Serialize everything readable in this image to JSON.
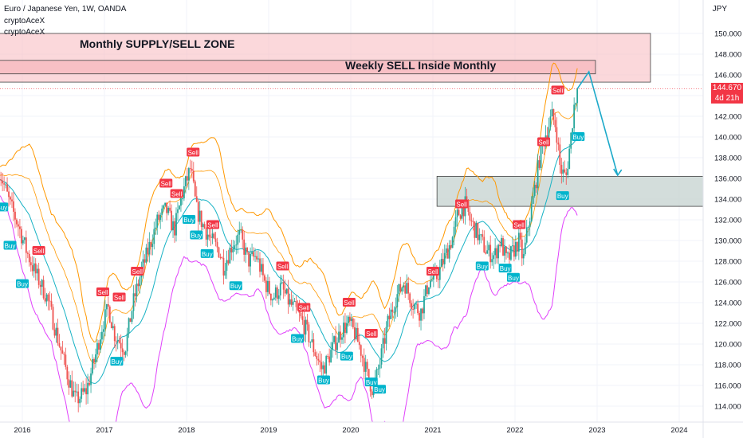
{
  "header": {
    "title": "Euro / Japanese Yen, 1W, OANDA",
    "indicators": [
      "cryptoAceX",
      "cryptoAceX"
    ],
    "currency": "JPY"
  },
  "price_label": {
    "value": "144.670",
    "countdown": "4d 21h"
  },
  "colors": {
    "up": "#26a69a",
    "down": "#ef5350",
    "upper_band": "#ff9800",
    "lower_band": "#e040fb",
    "mid_band": "#17b2c4",
    "sell_badge": "#f23645",
    "buy_badge": "#00b4cc",
    "supply_zone": "#f7b8bd",
    "demand_zone": "#c8d4d2",
    "arrow": "#1ca9c9"
  },
  "chart_data": {
    "type": "candlestick",
    "x_ticks": [
      "2016",
      "2017",
      "2018",
      "2019",
      "2020",
      "2021",
      "2022",
      "2023",
      "2024"
    ],
    "y_ticks": [
      "114.000",
      "116.000",
      "118.000",
      "120.000",
      "122.000",
      "124.000",
      "126.000",
      "128.000",
      "130.000",
      "132.000",
      "134.000",
      "136.000",
      "138.000",
      "140.000",
      "142.000",
      "144.000",
      "146.000",
      "148.000",
      "150.000"
    ],
    "ylim": [
      113,
      151
    ],
    "xlim": [
      2015.7,
      2024.6
    ],
    "close_path": [
      [
        2015.72,
        136.8
      ],
      [
        2015.85,
        133.5
      ],
      [
        2015.95,
        131.5
      ],
      [
        2016.05,
        129.0
      ],
      [
        2016.15,
        127.0
      ],
      [
        2016.3,
        124.5
      ],
      [
        2016.45,
        120.0
      ],
      [
        2016.55,
        117.0
      ],
      [
        2016.65,
        114.5
      ],
      [
        2016.78,
        115.5
      ],
      [
        2016.88,
        118.5
      ],
      [
        2016.98,
        122.0
      ],
      [
        2017.05,
        123.5
      ],
      [
        2017.12,
        121.0
      ],
      [
        2017.25,
        119.5
      ],
      [
        2017.35,
        124.0
      ],
      [
        2017.45,
        127.0
      ],
      [
        2017.55,
        129.5
      ],
      [
        2017.65,
        132.0
      ],
      [
        2017.75,
        133.0
      ],
      [
        2017.85,
        131.0
      ],
      [
        2017.95,
        134.5
      ],
      [
        2018.05,
        137.0
      ],
      [
        2018.12,
        133.0
      ],
      [
        2018.2,
        131.5
      ],
      [
        2018.3,
        130.0
      ],
      [
        2018.4,
        129.0
      ],
      [
        2018.45,
        127.5
      ],
      [
        2018.55,
        129.5
      ],
      [
        2018.65,
        130.5
      ],
      [
        2018.75,
        128.0
      ],
      [
        2018.85,
        128.5
      ],
      [
        2018.95,
        126.0
      ],
      [
        2019.05,
        124.5
      ],
      [
        2019.15,
        125.5
      ],
      [
        2019.25,
        124.0
      ],
      [
        2019.35,
        123.0
      ],
      [
        2019.45,
        121.5
      ],
      [
        2019.55,
        119.5
      ],
      [
        2019.65,
        117.5
      ],
      [
        2019.72,
        118.5
      ],
      [
        2019.8,
        120.0
      ],
      [
        2019.9,
        121.5
      ],
      [
        2019.98,
        122.0
      ],
      [
        2020.05,
        121.0
      ],
      [
        2020.12,
        119.5
      ],
      [
        2020.2,
        117.0
      ],
      [
        2020.27,
        115.5
      ],
      [
        2020.35,
        118.0
      ],
      [
        2020.45,
        122.0
      ],
      [
        2020.55,
        124.5
      ],
      [
        2020.65,
        126.0
      ],
      [
        2020.75,
        124.0
      ],
      [
        2020.85,
        123.0
      ],
      [
        2020.95,
        126.0
      ],
      [
        2021.05,
        126.5
      ],
      [
        2021.15,
        128.5
      ],
      [
        2021.25,
        130.5
      ],
      [
        2021.3,
        132.5
      ],
      [
        2021.4,
        133.5
      ],
      [
        2021.45,
        132.0
      ],
      [
        2021.55,
        130.5
      ],
      [
        2021.65,
        129.0
      ],
      [
        2021.75,
        128.5
      ],
      [
        2021.82,
        130.0
      ],
      [
        2021.9,
        128.0
      ],
      [
        2021.98,
        129.0
      ],
      [
        2022.05,
        130.0
      ],
      [
        2022.1,
        128.0
      ],
      [
        2022.15,
        131.0
      ],
      [
        2022.22,
        134.0
      ],
      [
        2022.3,
        138.0
      ],
      [
        2022.38,
        140.5
      ],
      [
        2022.45,
        142.0
      ],
      [
        2022.5,
        141.0
      ],
      [
        2022.55,
        137.0
      ],
      [
        2022.62,
        136.0
      ],
      [
        2022.68,
        140.0
      ],
      [
        2022.72,
        143.0
      ],
      [
        2022.76,
        144.67
      ]
    ],
    "sell_signals": [
      [
        2016.2,
        129.0
      ],
      [
        2016.98,
        125.0
      ],
      [
        2017.18,
        124.5
      ],
      [
        2017.4,
        127.0
      ],
      [
        2017.75,
        135.5
      ],
      [
        2017.88,
        134.5
      ],
      [
        2018.08,
        138.5
      ],
      [
        2018.32,
        131.5
      ],
      [
        2019.17,
        127.5
      ],
      [
        2019.43,
        123.5
      ],
      [
        2019.98,
        124.0
      ],
      [
        2020.25,
        121.0
      ],
      [
        2021.0,
        127.0
      ],
      [
        2021.35,
        133.5
      ],
      [
        2022.05,
        131.5
      ],
      [
        2022.35,
        139.5
      ],
      [
        2022.52,
        144.5
      ]
    ],
    "buy_signals": [
      [
        2015.75,
        133.2
      ],
      [
        2015.85,
        129.5
      ],
      [
        2016.0,
        125.8
      ],
      [
        2017.15,
        118.3
      ],
      [
        2018.03,
        132.0
      ],
      [
        2018.12,
        130.5
      ],
      [
        2018.25,
        128.7
      ],
      [
        2018.6,
        125.6
      ],
      [
        2019.35,
        120.5
      ],
      [
        2019.67,
        116.5
      ],
      [
        2019.95,
        118.8
      ],
      [
        2020.25,
        116.3
      ],
      [
        2020.35,
        115.6
      ],
      [
        2021.6,
        127.5
      ],
      [
        2021.88,
        127.3
      ],
      [
        2021.98,
        126.4
      ],
      [
        2022.58,
        134.3
      ],
      [
        2022.77,
        140.0
      ]
    ],
    "zones": [
      {
        "label": "Monthly SUPPLY/SELL ZONE",
        "y_top": 150.0,
        "y_bottom": 145.3,
        "x_start": 2015.7,
        "x_end": 2023.65
      },
      {
        "label": "Weekly SELL Inside Monthly",
        "y_top": 147.4,
        "y_bottom": 146.1,
        "x_start": 2015.7,
        "x_end": 2022.98
      },
      {
        "label": "",
        "y_top": 136.2,
        "y_bottom": 133.3,
        "x_start": 2021.05,
        "x_end": 2024.6
      }
    ],
    "projection": [
      [
        2022.76,
        144.67
      ],
      [
        2022.9,
        146.3
      ],
      [
        2023.25,
        136.3
      ]
    ],
    "last_price": 144.67
  }
}
